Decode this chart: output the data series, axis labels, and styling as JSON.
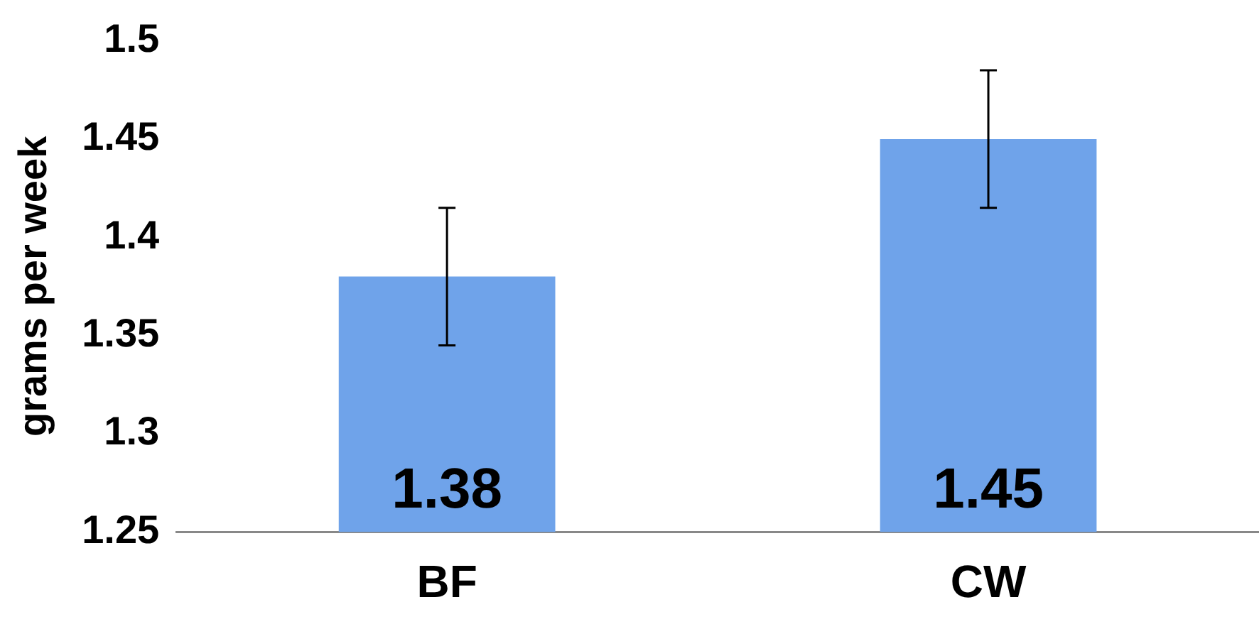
{
  "chart_data": {
    "type": "bar",
    "ylabel": "grams per week",
    "categories": [
      "BF",
      "CW"
    ],
    "values": [
      1.38,
      1.45
    ],
    "errors": [
      0.035,
      0.035
    ],
    "color": "#6fa3ea",
    "ylim": [
      1.25,
      1.5
    ],
    "yticks": [
      1.25,
      1.3,
      1.35,
      1.4,
      1.45,
      1.5
    ],
    "grid": false,
    "legend": false,
    "data_labels": true
  }
}
